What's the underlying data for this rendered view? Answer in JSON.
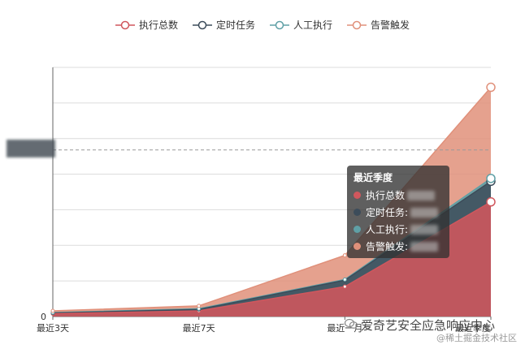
{
  "chart_data": {
    "type": "area",
    "categories": [
      "最近3天",
      "最近7天",
      "最近一月",
      "最近季度"
    ],
    "series": [
      {
        "name": "执行总数",
        "color": "#d0575d",
        "values": [
          40,
          80,
          420,
          1610
        ]
      },
      {
        "name": "定时任务",
        "color": "#3c4c5a",
        "values": [
          50,
          100,
          510,
          1900
        ]
      },
      {
        "name": "人工执行",
        "color": "#5fa0a6",
        "values": [
          55,
          110,
          520,
          1940
        ]
      },
      {
        "name": "告警触发",
        "color": "#e0907a",
        "values": [
          80,
          150,
          860,
          3220
        ]
      }
    ],
    "ylim": [
      0,
      3500
    ],
    "y_ticks": [
      0,
      500,
      1000,
      1500,
      2000,
      2500,
      3000,
      3500
    ],
    "y_tick_labels": [
      "0",
      "",
      "",
      "",
      "",
      "",
      "",
      ""
    ],
    "mark_line": 2340,
    "grid": true,
    "legend_position": "top-center"
  },
  "tooltip": {
    "title": "最近季度",
    "rows": [
      {
        "label": "执行总数",
        "color": "#d0575d"
      },
      {
        "label": "定时任务:",
        "color": "#3c4c5a"
      },
      {
        "label": "人工执行:",
        "color": "#5fa0a6"
      },
      {
        "label": "告警触发:",
        "color": "#e0907a"
      }
    ]
  },
  "watermark": {
    "text": "爱奇艺安全应急响应中心",
    "sub": "@稀土掘金技术社区",
    "icon": "wechat-icon"
  }
}
